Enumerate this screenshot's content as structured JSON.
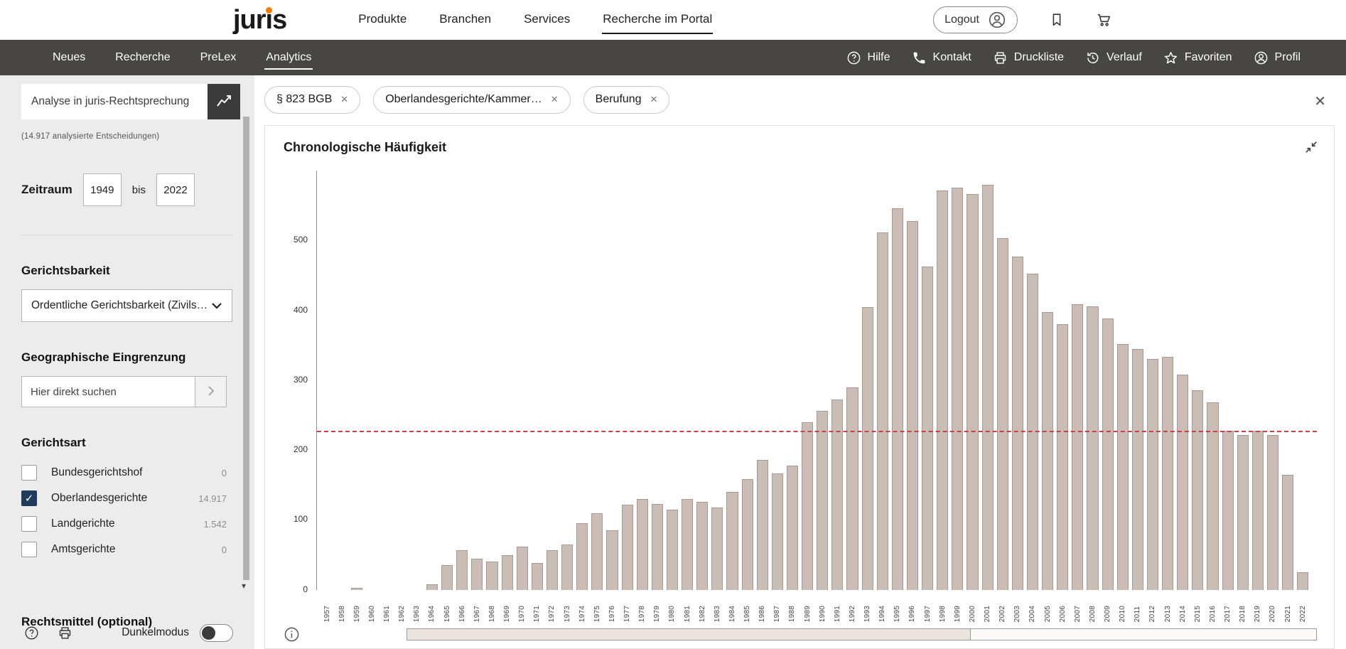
{
  "header": {
    "logo": "juris",
    "nav": [
      "Produkte",
      "Branchen",
      "Services",
      "Recherche im Portal"
    ],
    "active_nav": "Recherche im Portal",
    "logout_label": "Logout"
  },
  "navbar": {
    "items": [
      "Neues",
      "Recherche",
      "PreLex",
      "Analytics"
    ],
    "active": "Analytics",
    "right": [
      {
        "icon": "help-icon",
        "label": "Hilfe"
      },
      {
        "icon": "phone-icon",
        "label": "Kontakt"
      },
      {
        "icon": "printer-icon",
        "label": "Druckliste"
      },
      {
        "icon": "history-icon",
        "label": "Verlauf"
      },
      {
        "icon": "star-icon",
        "label": "Favoriten"
      },
      {
        "icon": "profile-icon",
        "label": "Profil"
      }
    ]
  },
  "sidebar": {
    "search_placeholder": "Analyse in juris-Rechtsprechung",
    "analyzed_note": "(14.917 analysierte Entscheidungen)",
    "zeitraum": {
      "label": "Zeitraum",
      "from": "1949",
      "separator": "bis",
      "to": "2022"
    },
    "gerichtsbarkeit": {
      "heading": "Gerichtsbarkeit",
      "selected": "Ordentliche Gerichtsbarkeit (Zivils…"
    },
    "geographische_eingrenzung": {
      "heading": "Geographische Eingrenzung",
      "placeholder": "Hier direkt suchen"
    },
    "gerichtsart": {
      "heading": "Gerichtsart",
      "options": [
        {
          "label": "Bundesgerichtshof",
          "count": "0",
          "checked": false
        },
        {
          "label": "Oberlandesgerichte",
          "count": "14.917",
          "checked": true
        },
        {
          "label": "Landgerichte",
          "count": "1.542",
          "checked": false
        },
        {
          "label": "Amtsgerichte",
          "count": "0",
          "checked": false
        }
      ]
    },
    "rechtsmittel_heading": "Rechtsmittel (optional)",
    "dunkelmodus_label": "Dunkelmodus"
  },
  "filters": {
    "chips": [
      "§ 823 BGB",
      "Oberlandesgerichte/Kammer…",
      "Berufung"
    ]
  },
  "chart": {
    "title": "Chronologische Häufigkeit"
  },
  "chart_data": {
    "type": "bar",
    "title": "Chronologische Häufigkeit",
    "x": [
      1957,
      1958,
      1959,
      1960,
      1961,
      1962,
      1963,
      1964,
      1965,
      1966,
      1967,
      1968,
      1969,
      1970,
      1971,
      1972,
      1973,
      1974,
      1975,
      1976,
      1977,
      1978,
      1979,
      1980,
      1981,
      1982,
      1983,
      1984,
      1985,
      1986,
      1987,
      1988,
      1989,
      1990,
      1991,
      1992,
      1993,
      1994,
      1995,
      1996,
      1997,
      1998,
      1999,
      2000,
      2001,
      2002,
      2003,
      2004,
      2005,
      2006,
      2007,
      2008,
      2009,
      2010,
      2011,
      2012,
      2013,
      2014,
      2015,
      2016,
      2017,
      2018,
      2019,
      2020,
      2021,
      2022
    ],
    "values": [
      0,
      0,
      3,
      0,
      0,
      0,
      0,
      8,
      35,
      57,
      45,
      40,
      50,
      62,
      38,
      57,
      65,
      95,
      110,
      85,
      122,
      130,
      123,
      115,
      130,
      126,
      118,
      140,
      158,
      186,
      167,
      178,
      240,
      256,
      272,
      290,
      405,
      512,
      546,
      528,
      463,
      572,
      576,
      566,
      580,
      503,
      477,
      452,
      398,
      380,
      409,
      406,
      388,
      352,
      345,
      330,
      333,
      308,
      286,
      268,
      228,
      222,
      228,
      222,
      165,
      25
    ],
    "ylim": [
      0,
      600
    ],
    "yticks": [
      0,
      100,
      200,
      300,
      400,
      500
    ],
    "reference_line": 226,
    "grid": false,
    "legend": false,
    "bar_color": "#cabdb6",
    "bar_border_color": "#a99890",
    "reference_line_color": "#c4404a"
  },
  "icons": {
    "close_glyph": "✕",
    "check_glyph": "✓",
    "scroll_down_glyph": "▾"
  },
  "colors": {
    "navbar_bg": "#474645",
    "sidebar_bg": "#ececec",
    "accent_orange": "#f07d00",
    "checkbox_checked": "#223a5e"
  }
}
